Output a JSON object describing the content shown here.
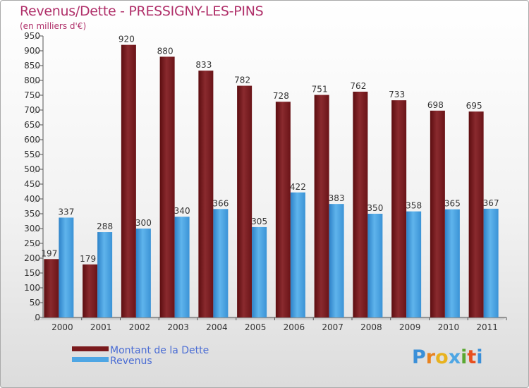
{
  "header": {
    "title": "Revenus/Dette - PRESSIGNY-LES-PINS",
    "subtitle": "(en milliers d'€)"
  },
  "logo": {
    "text": "Proxiti"
  },
  "colors": {
    "dette": "#7a1a1d",
    "revenus": "#4ea6e4",
    "title": "#b0306a",
    "legend_text": "#4a6cd4"
  },
  "chart_data": {
    "type": "bar",
    "categories": [
      "2000",
      "2001",
      "2002",
      "2003",
      "2004",
      "2005",
      "2006",
      "2007",
      "2008",
      "2009",
      "2010",
      "2011"
    ],
    "series": [
      {
        "name": "Montant de la Dette",
        "values": [
          197,
          179,
          920,
          880,
          833,
          782,
          728,
          751,
          762,
          733,
          698,
          695
        ]
      },
      {
        "name": "Revenus",
        "values": [
          337,
          288,
          300,
          340,
          366,
          305,
          422,
          383,
          350,
          358,
          365,
          367
        ]
      }
    ],
    "ylim": [
      0,
      950
    ],
    "yticks": [
      0,
      50,
      100,
      150,
      200,
      250,
      300,
      350,
      400,
      450,
      500,
      550,
      600,
      650,
      700,
      750,
      800,
      850,
      900,
      950
    ],
    "grid": false,
    "legend": "bottom-left"
  }
}
